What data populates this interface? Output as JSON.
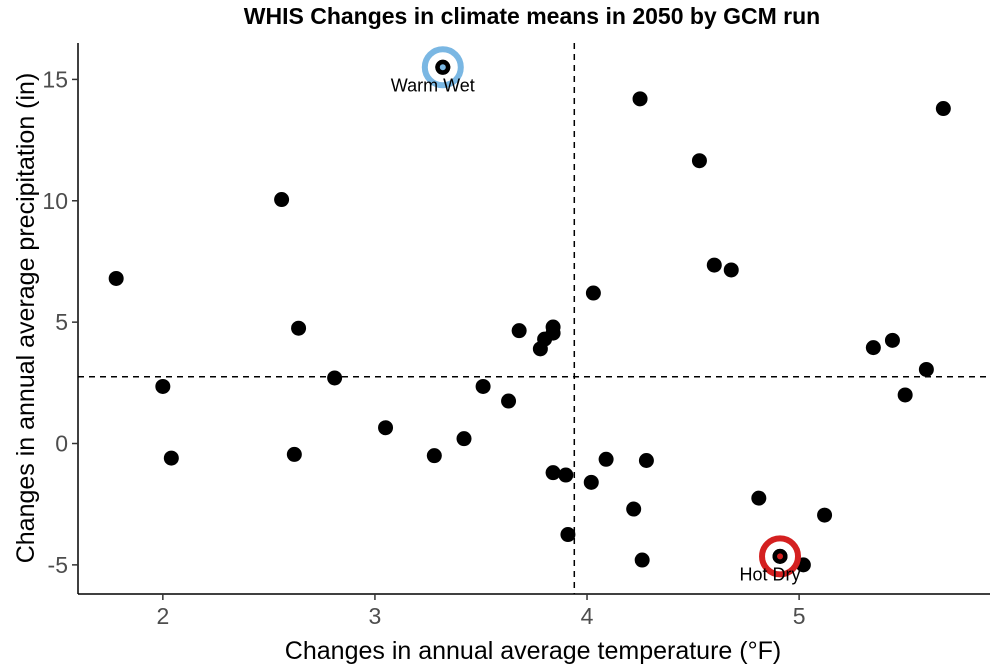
{
  "chart_data": {
    "type": "scatter",
    "title": "WHIS Changes in climate means in 2050 by GCM run",
    "xlabel": "Changes in annual average temperature (°F)",
    "ylabel": "Changes in annual average precipitation (in)",
    "xlim": [
      1.6,
      5.9
    ],
    "ylim": [
      -6.2,
      16.5
    ],
    "xticks": [
      2,
      3,
      4,
      5
    ],
    "yticks": [
      -5,
      0,
      5,
      10,
      15
    ],
    "xticks_labels": [
      "2",
      "3",
      "4",
      "5"
    ],
    "yticks_labels": [
      "-5",
      "0",
      "5",
      "10",
      "15"
    ],
    "grid": false,
    "reference_lines": {
      "x": 3.94,
      "y": 2.75
    },
    "point_color": "#000000",
    "points": [
      {
        "x": 1.78,
        "y": 6.8
      },
      {
        "x": 2.0,
        "y": 2.35
      },
      {
        "x": 2.04,
        "y": -0.6
      },
      {
        "x": 2.56,
        "y": 10.05
      },
      {
        "x": 2.62,
        "y": -0.45
      },
      {
        "x": 2.64,
        "y": 4.75
      },
      {
        "x": 2.81,
        "y": 2.7
      },
      {
        "x": 3.05,
        "y": 0.65
      },
      {
        "x": 3.28,
        "y": -0.5
      },
      {
        "x": 3.32,
        "y": 15.5
      },
      {
        "x": 3.42,
        "y": 0.2
      },
      {
        "x": 3.51,
        "y": 2.35
      },
      {
        "x": 3.63,
        "y": 1.75
      },
      {
        "x": 3.68,
        "y": 4.65
      },
      {
        "x": 3.78,
        "y": 3.9
      },
      {
        "x": 3.8,
        "y": 4.3
      },
      {
        "x": 3.84,
        "y": 4.8
      },
      {
        "x": 3.84,
        "y": 4.55
      },
      {
        "x": 3.84,
        "y": -1.2
      },
      {
        "x": 3.9,
        "y": -1.3
      },
      {
        "x": 3.91,
        "y": -3.75
      },
      {
        "x": 4.02,
        "y": -1.6
      },
      {
        "x": 4.03,
        "y": 6.2
      },
      {
        "x": 4.09,
        "y": -0.65
      },
      {
        "x": 4.22,
        "y": -2.7
      },
      {
        "x": 4.25,
        "y": 14.2
      },
      {
        "x": 4.26,
        "y": -4.8
      },
      {
        "x": 4.28,
        "y": -0.7
      },
      {
        "x": 4.53,
        "y": 11.65
      },
      {
        "x": 4.6,
        "y": 7.35
      },
      {
        "x": 4.68,
        "y": 7.15
      },
      {
        "x": 4.81,
        "y": -2.25
      },
      {
        "x": 4.91,
        "y": -4.65
      },
      {
        "x": 5.02,
        "y": -5.0
      },
      {
        "x": 5.12,
        "y": -2.95
      },
      {
        "x": 5.35,
        "y": 3.95
      },
      {
        "x": 5.44,
        "y": 4.25
      },
      {
        "x": 5.5,
        "y": 2.0
      },
      {
        "x": 5.6,
        "y": 3.05
      },
      {
        "x": 5.68,
        "y": 13.8
      }
    ],
    "highlights": [
      {
        "x": 3.32,
        "y": 15.5,
        "label": "Warm Wet",
        "ring_color": "#7ab7e3",
        "center_color": "#7ab7e3"
      },
      {
        "x": 4.91,
        "y": -4.65,
        "label": "Hot Dry",
        "ring_color": "#d42020",
        "center_color": "#d42020"
      }
    ]
  }
}
